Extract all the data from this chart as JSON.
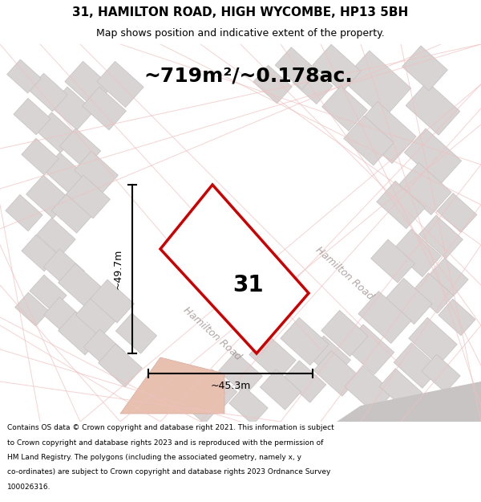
{
  "title": "31, HAMILTON ROAD, HIGH WYCOMBE, HP13 5BH",
  "subtitle": "Map shows position and indicative extent of the property.",
  "area_text": "~719m²/~0.178ac.",
  "width_label": "~45.3m",
  "height_label": "~49.7m",
  "property_number": "31",
  "map_bg": "#f2f0f0",
  "plot_outline_color": "#cc0000",
  "road_label_1": "Hamilton Road",
  "road_label_2": "Hamilton Road",
  "footer_lines": [
    "Contains OS data © Crown copyright and database right 2021. This information is subject",
    "to Crown copyright and database rights 2023 and is reproduced with the permission of",
    "HM Land Registry. The polygons (including the associated geometry, namely x, y",
    "co-ordinates) are subject to Crown copyright and database rights 2023 Ordnance Survey",
    "100026316."
  ],
  "title_fontsize": 11,
  "subtitle_fontsize": 9,
  "area_fontsize": 18,
  "footer_fontsize": 6.5
}
